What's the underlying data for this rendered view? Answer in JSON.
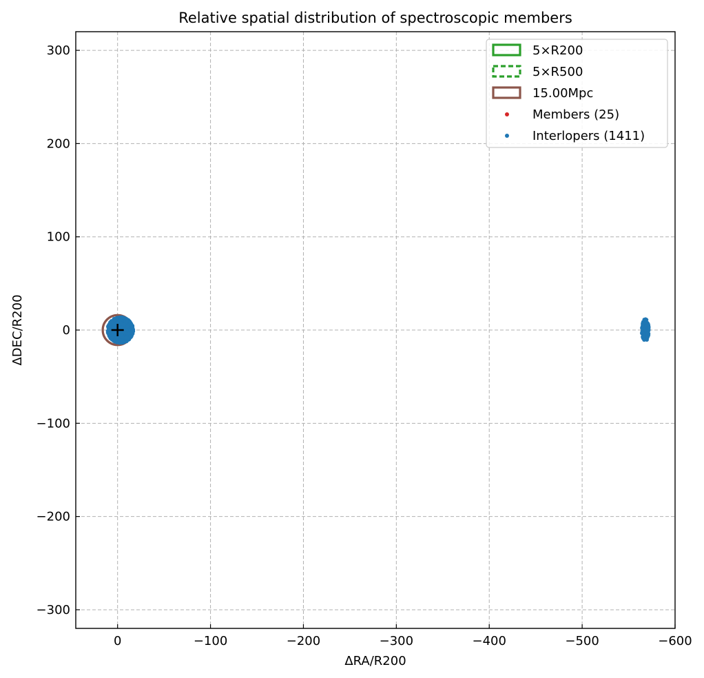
{
  "chart_data": {
    "type": "scatter",
    "title": "Relative spatial distribution of spectroscopic members",
    "xlabel": "ΔRA/R200",
    "ylabel": "ΔDEC/R200",
    "xlim": [
      45,
      -600
    ],
    "ylim": [
      -320,
      320
    ],
    "x_inverted": true,
    "grid": true,
    "grid_style": "dashed",
    "legend_position": "top-right",
    "x_ticks": [
      0,
      -100,
      -200,
      -300,
      -400,
      -500,
      -600
    ],
    "x_tick_labels": [
      "0",
      "−100",
      "−200",
      "−300",
      "−400",
      "−500",
      "−600"
    ],
    "y_ticks": [
      300,
      200,
      100,
      0,
      -100,
      -200,
      -300
    ],
    "y_tick_labels": [
      "300",
      "200",
      "100",
      "0",
      "−100",
      "−200",
      "−300"
    ],
    "legend": [
      {
        "label": "5×R200",
        "kind": "rect-solid",
        "color": "#2ca02c"
      },
      {
        "label": "5×R500",
        "kind": "rect-dashed",
        "color": "#2ca02c"
      },
      {
        "label": "15.00Mpc",
        "kind": "rect-solid",
        "color": "#8c564b"
      },
      {
        "label": "Members (25)",
        "kind": "dot",
        "color": "#d62728"
      },
      {
        "label": "Interlopers (1411)",
        "kind": "dot",
        "color": "#1f77b4"
      }
    ],
    "circles": [
      {
        "name": "5×R200",
        "center": [
          0,
          0
        ],
        "radius": 5,
        "color": "#2ca02c",
        "style": "solid"
      },
      {
        "name": "5×R500",
        "center": [
          0,
          0
        ],
        "radius": 3.3,
        "color": "#2ca02c",
        "style": "dashed"
      },
      {
        "name": "15.00Mpc",
        "center": [
          0,
          0
        ],
        "radius": 16,
        "color": "#8c564b",
        "style": "solid"
      }
    ],
    "center_marker": {
      "x": 0,
      "y": 0,
      "symbol": "+",
      "color": "#000000"
    },
    "series": [
      {
        "name": "Members (25)",
        "color": "#d62728",
        "count": 25,
        "clusters": [
          {
            "cx": 0,
            "cy": 0,
            "rx": 3,
            "ry": 3
          }
        ]
      },
      {
        "name": "Interlopers (1411)",
        "color": "#1f77b4",
        "count": 1411,
        "clusters": [
          {
            "cx": -3,
            "cy": 0,
            "rx": 14,
            "ry": 14,
            "n": 1200
          },
          {
            "cx": -568,
            "cy": 0,
            "rx": 4,
            "ry": 12,
            "n": 211
          }
        ]
      }
    ]
  }
}
